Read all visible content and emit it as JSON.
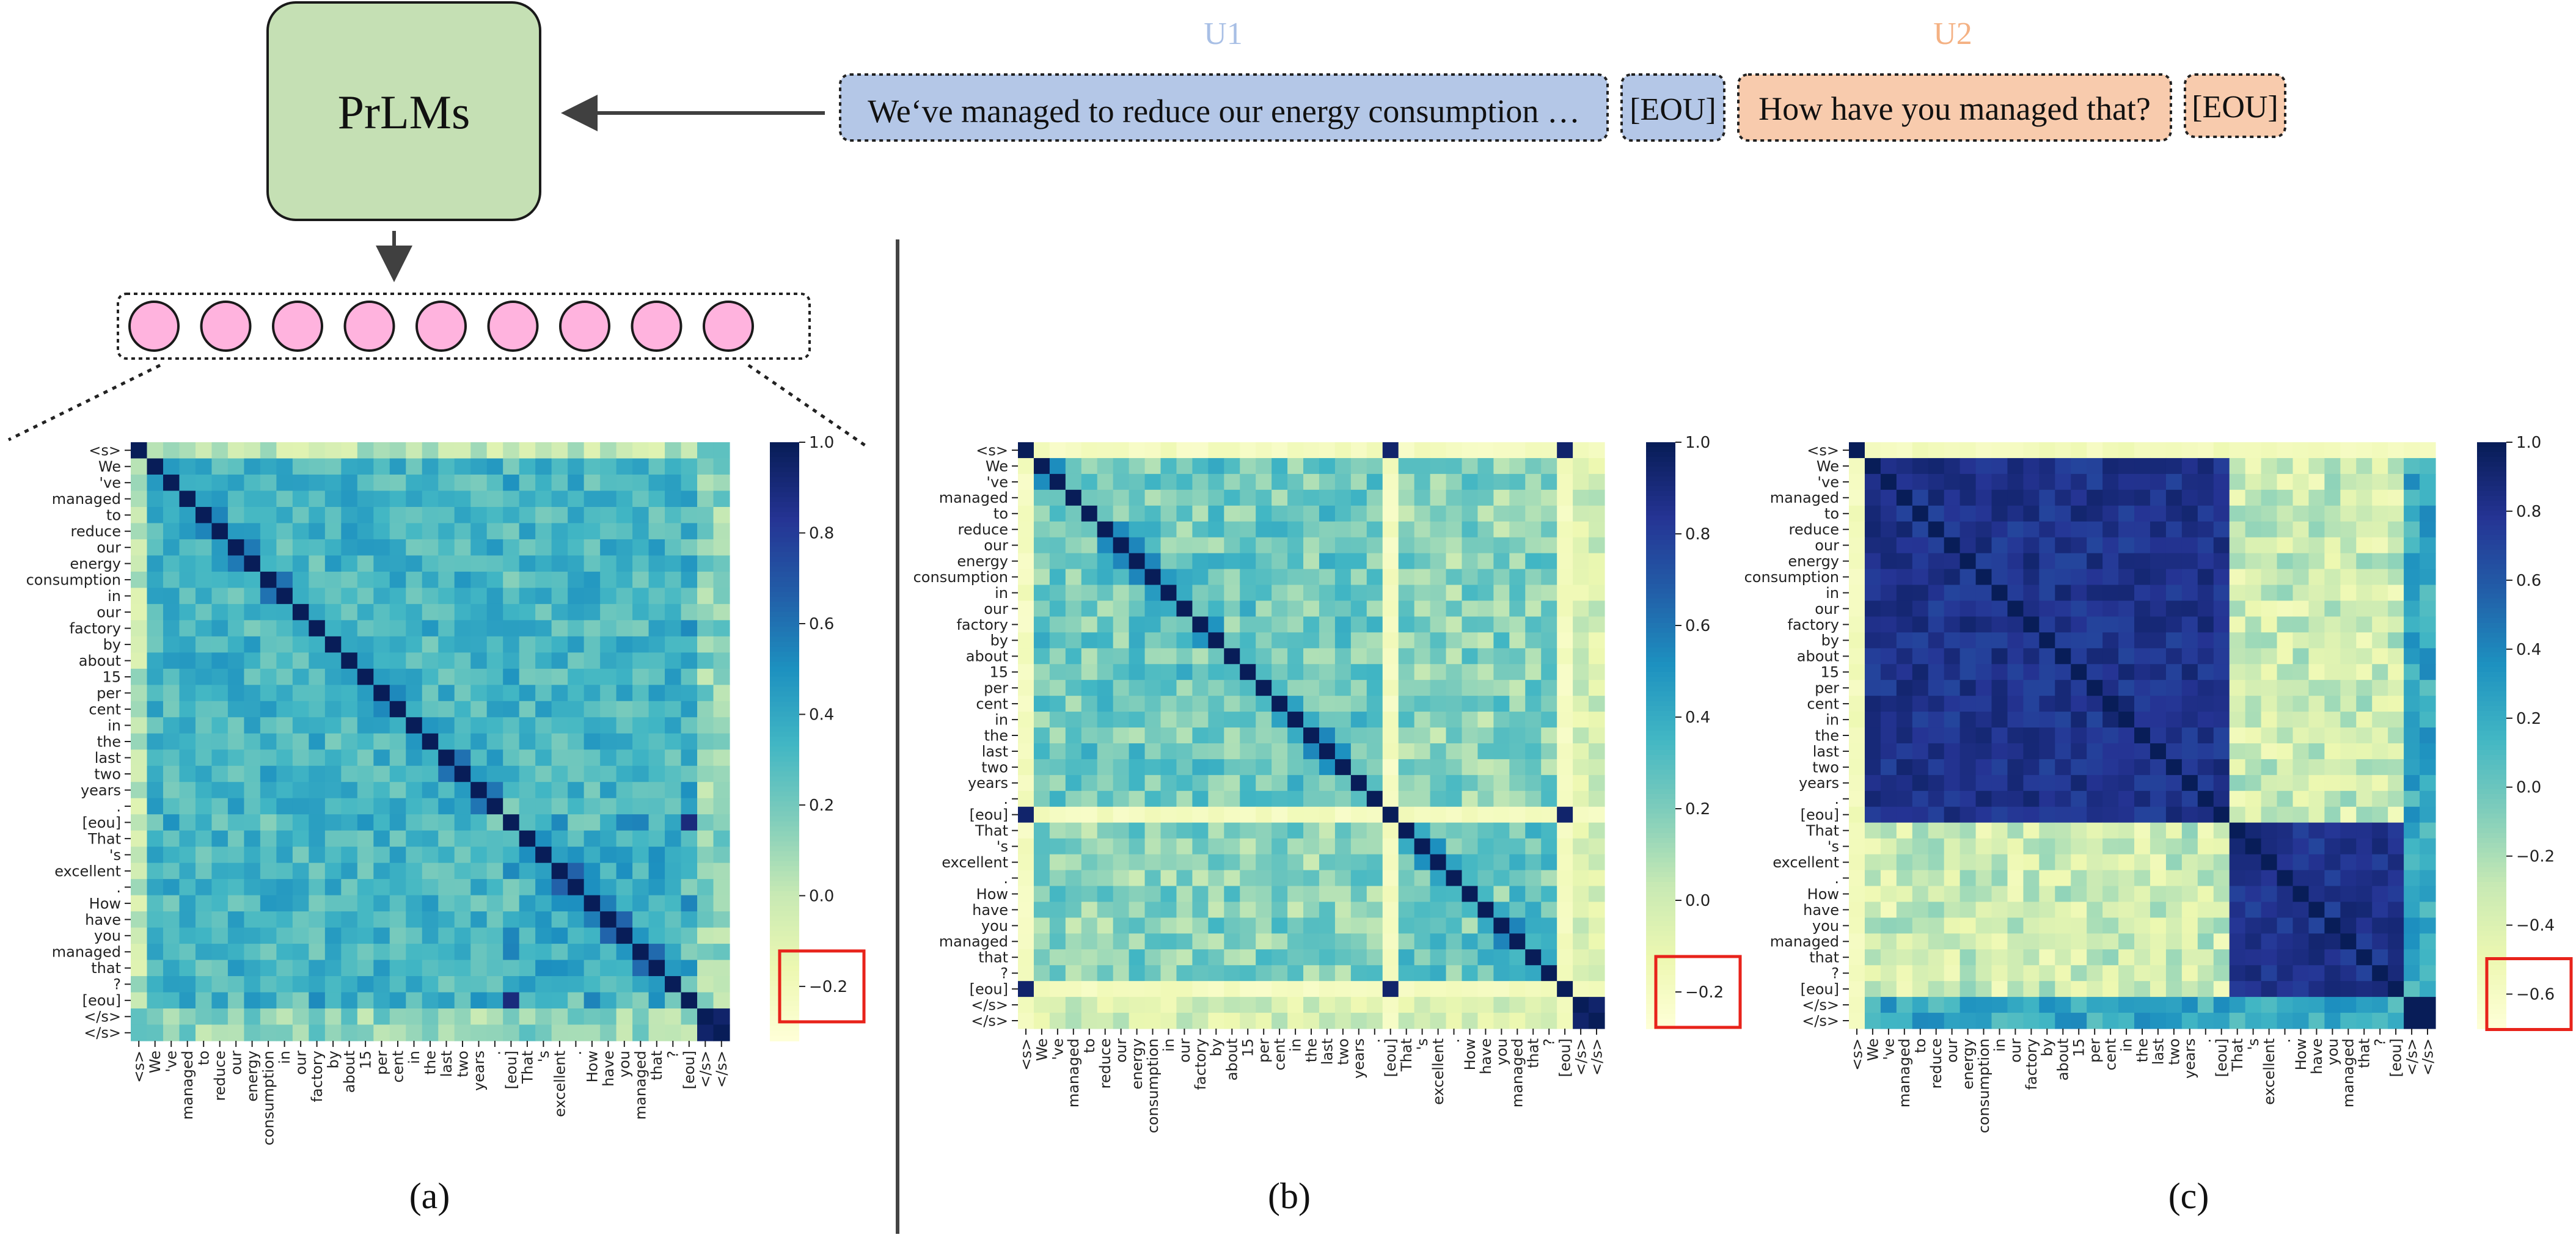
{
  "diagram": {
    "model_label": "PrLMs",
    "utterance_labels": {
      "u1": "U1",
      "u2": "U2"
    },
    "utterances": {
      "u1_text": "We‘ve managed to reduce our energy consumption …",
      "eou_1": "[EOU]",
      "u2_text": "How have you managed that?",
      "eou_2": "[EOU]"
    },
    "embedding_count": 9,
    "colors": {
      "model_box": "#c5e0b4",
      "u1_fill": "#b4c7e7",
      "u2_fill": "#f8cbad",
      "u1_label": "#a8bfe5",
      "u2_label": "#f4b183",
      "embedding": "#ffb3de",
      "highlight_box": "#e8231b"
    }
  },
  "tokens": [
    "<s>",
    "We",
    "'ve",
    "managed",
    "to",
    "reduce",
    "our",
    "energy",
    "consumption",
    "in",
    "our",
    "factory",
    "by",
    "about",
    "15",
    "per",
    "cent",
    "in",
    "the",
    "last",
    "two",
    "years",
    ".",
    "[eou]",
    "That",
    "'s",
    "excellent",
    ".",
    "How",
    "have",
    "you",
    "managed",
    "that",
    "?",
    "[eou]",
    "</s>",
    "</s>"
  ],
  "chart_data": [
    {
      "type": "heatmap",
      "panel_label": "(a)",
      "title": "",
      "colormap": "YlGnBu",
      "colorbar_ticks": [
        "1.0",
        "0.8",
        "0.6",
        "0.4",
        "0.2",
        "0.0",
        "−0.2"
      ],
      "vmin": -0.32,
      "vmax": 1.0,
      "highlighted_tick": "−0.2",
      "pattern": "uniform moderate similarity among all tokens (~0.2–0.5), strong diagonal"
    },
    {
      "type": "heatmap",
      "panel_label": "(b)",
      "title": "",
      "colormap": "YlGnBu",
      "colorbar_ticks": [
        "1.0",
        "0.8",
        "0.6",
        "0.4",
        "0.2",
        "0.0",
        "−0.2"
      ],
      "vmin": -0.28,
      "vmax": 1.0,
      "highlighted_tick": "−0.2",
      "pattern": "moderate similarity within utterances; [eou] and <s> rows/columns near zero except mutual high similarity"
    },
    {
      "type": "heatmap",
      "panel_label": "(c)",
      "title": "",
      "colormap": "YlGnBu",
      "colorbar_ticks": [
        "1.0",
        "0.8",
        "0.6",
        "0.4",
        "0.2",
        "0.0",
        "−0.2",
        "−0.4",
        "−0.6"
      ],
      "vmin": -0.7,
      "vmax": 1.0,
      "highlighted_tick": "−0.6",
      "pattern": "high similarity within each utterance block (~0.8–1.0), low cross-utterance similarity"
    }
  ]
}
